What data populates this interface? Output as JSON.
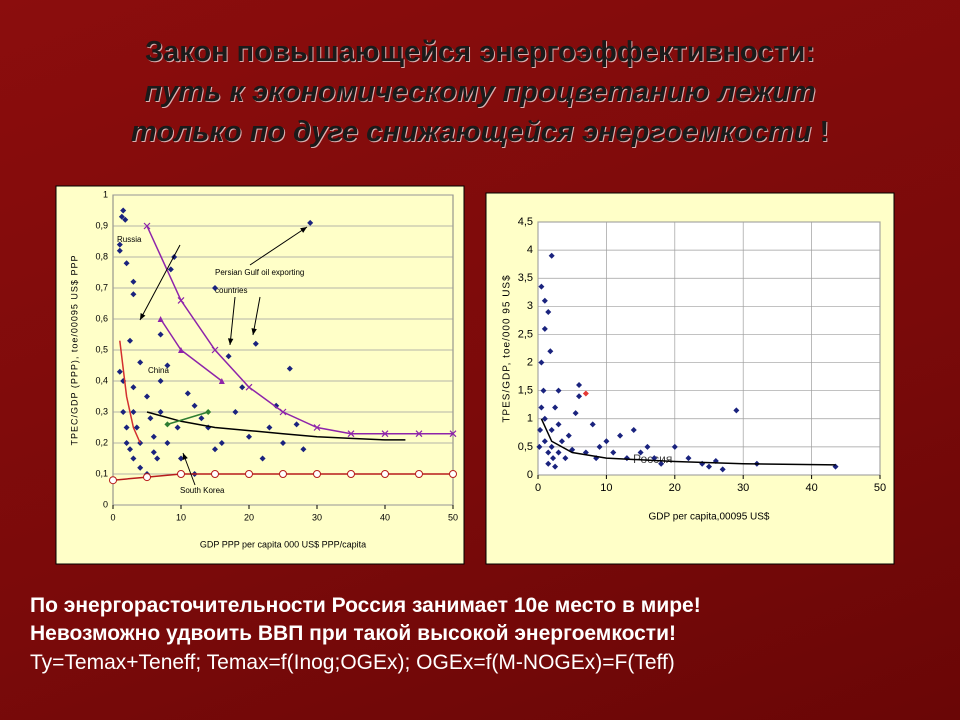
{
  "title": [
    "Закон повышающейся энергоэффективности:",
    "путь к экономическому процветанию лежит",
    "только по дуге снижающейся энергоемкости",
    "!"
  ],
  "footer": [
    "По энергорасточительности Россия занимает 10е место в мире!",
    "Невозможно удвоить ВВП при такой высокой энергоемкости!",
    "Ty=Temax+Teneff; Temax=f(Inog;OGEx); OGEx=f(M-NOGEx)=F(Teff)"
  ],
  "chart_data": [
    {
      "type": "scatter",
      "x_label": "GDP PPP per capita 000 US$ PPP/capita",
      "y_label": "TPEC/GDP (PPP), toe/00095 US$ PPP",
      "annotations": [
        "Russia",
        "Persian Gulf oil exporting",
        "countries",
        "China",
        "South Korea"
      ],
      "xlim": [
        0,
        50
      ],
      "ylim": [
        0,
        1
      ],
      "xticks": [
        0,
        10,
        20,
        30,
        40,
        50
      ],
      "yticks": [
        0,
        {
          "value": 0.1,
          "label": "0,1"
        },
        {
          "value": 0.2,
          "label": "0,2"
        },
        {
          "value": 0.3,
          "label": "0,3"
        },
        {
          "value": 0.4,
          "label": "0,4"
        },
        {
          "value": 0.5,
          "label": "0,5"
        },
        {
          "value": 0.6,
          "label": "0,6"
        },
        {
          "value": 0.7,
          "label": "0,7"
        },
        {
          "value": 0.8,
          "label": "0,8"
        },
        {
          "value": 0.9,
          "label": "0,9"
        },
        1
      ],
      "grid": true,
      "series": [
        {
          "color": "#1a237e",
          "marker": "diamond",
          "line": false,
          "x": [
            1,
            1,
            1.3,
            1.5,
            1.8,
            2,
            1,
            1.5,
            1.5,
            2,
            2,
            2.5,
            3,
            3,
            3.5,
            4,
            4,
            5,
            5,
            5.5,
            6,
            6.5,
            7,
            7,
            8,
            8,
            8.5,
            9,
            9.5,
            10,
            11,
            12,
            13,
            14,
            15,
            16,
            17,
            18,
            19,
            20,
            21,
            22,
            23,
            24,
            25,
            26,
            27,
            28,
            29,
            3,
            3,
            2.5,
            3,
            4,
            6,
            7,
            12,
            15
          ],
          "values": [
            0.82,
            0.84,
            0.93,
            0.95,
            0.92,
            0.78,
            0.43,
            0.4,
            0.3,
            0.25,
            0.2,
            0.18,
            0.3,
            0.15,
            0.25,
            0.2,
            0.12,
            0.1,
            0.35,
            0.28,
            0.22,
            0.15,
            0.4,
            0.3,
            0.2,
            0.45,
            0.76,
            0.8,
            0.25,
            0.15,
            0.36,
            0.32,
            0.28,
            0.25,
            0.7,
            0.2,
            0.48,
            0.3,
            0.38,
            0.22,
            0.52,
            0.15,
            0.25,
            0.32,
            0.2,
            0.44,
            0.26,
            0.18,
            0.91,
            0.68,
            0.72,
            0.53,
            0.38,
            0.46,
            0.17,
            0.55,
            0.1,
            0.18
          ]
        },
        {
          "color": "#8e24aa",
          "marker": "x",
          "line": true,
          "x": [
            5,
            10,
            15,
            20,
            25,
            30,
            35,
            40,
            45,
            50
          ],
          "values": [
            0.9,
            0.66,
            0.5,
            0.38,
            0.3,
            0.25,
            0.23,
            0.23,
            0.23,
            0.23
          ]
        },
        {
          "color": "#8e24aa",
          "marker": "triangle",
          "line": true,
          "x": [
            7,
            10,
            16
          ],
          "values": [
            0.6,
            0.5,
            0.4
          ]
        },
        {
          "color": "#000000",
          "marker": "none",
          "line": true,
          "x": [
            5,
            10,
            15,
            20,
            25,
            30,
            35,
            40,
            43
          ],
          "values": [
            0.3,
            0.27,
            0.25,
            0.24,
            0.23,
            0.22,
            0.215,
            0.21,
            0.21
          ]
        },
        {
          "color": "#b71c1c",
          "marker": "circle",
          "line": true,
          "x": [
            0,
            5,
            10,
            15,
            20,
            25,
            30,
            35,
            40,
            45,
            50
          ],
          "values": [
            0.08,
            0.09,
            0.1,
            0.1,
            0.1,
            0.1,
            0.1,
            0.1,
            0.1,
            0.1,
            0.1
          ]
        },
        {
          "color": "#d32f2f",
          "marker": "none",
          "line": true,
          "x": [
            1,
            2,
            3,
            4
          ],
          "values": [
            0.53,
            0.35,
            0.25,
            0.2
          ]
        },
        {
          "color": "#2e7d32",
          "marker": "diamond",
          "line": true,
          "x": [
            8,
            14
          ],
          "values": [
            0.26,
            0.3
          ]
        }
      ]
    },
    {
      "type": "scatter",
      "x_label": "GDP per capita,00095 US$",
      "y_label": "TPES/GDP, toe/000 95 US$",
      "annotations": [
        "Россия"
      ],
      "xlim": [
        0,
        50
      ],
      "ylim": [
        0,
        4.5
      ],
      "xticks": [
        0,
        10,
        20,
        30,
        40,
        50
      ],
      "yticks": [
        0,
        {
          "value": 0.5,
          "label": "0,5"
        },
        1,
        {
          "value": 1.5,
          "label": "1,5"
        },
        2,
        {
          "value": 2.5,
          "label": "2,5"
        },
        3,
        {
          "value": 3.5,
          "label": "3,5"
        },
        4,
        {
          "value": 4.5,
          "label": "4,5"
        }
      ],
      "grid": true,
      "series": [
        {
          "color": "#1a237e",
          "marker": "diamond",
          "line": false,
          "x": [
            0.5,
            1,
            1,
            1.5,
            2,
            1.8,
            0.5,
            0.8,
            0.5,
            1,
            1,
            1.5,
            2,
            2,
            2.5,
            3,
            3,
            3.5,
            4,
            4.5,
            5,
            5.5,
            6,
            6,
            7,
            8,
            8.5,
            9,
            10,
            11,
            12,
            13,
            14,
            15,
            16,
            17,
            18,
            20,
            22,
            24,
            25,
            26,
            27,
            29,
            32,
            43.5,
            0.2,
            0.3,
            1.5,
            2.5,
            3,
            2.2
          ],
          "values": [
            3.35,
            3.1,
            2.6,
            2.9,
            3.9,
            2.2,
            2.0,
            1.5,
            1.2,
            1.0,
            0.6,
            0.4,
            0.8,
            0.5,
            1.2,
            0.9,
            0.4,
            0.6,
            0.3,
            0.7,
            0.45,
            1.1,
            1.6,
            1.4,
            0.4,
            0.9,
            0.3,
            0.5,
            0.6,
            0.4,
            0.7,
            0.3,
            0.8,
            0.4,
            0.5,
            0.3,
            0.2,
            0.5,
            0.3,
            0.2,
            0.15,
            0.25,
            0.1,
            1.15,
            0.2,
            0.15,
            0.5,
            0.8,
            0.2,
            0.15,
            1.5,
            0.3
          ]
        },
        {
          "color": "#e53935",
          "marker": "diamond",
          "line": false,
          "x": [
            7
          ],
          "values": [
            1.45
          ]
        },
        {
          "color": "#000000",
          "marker": "none",
          "line": true,
          "x": [
            0.5,
            2,
            5,
            10,
            20,
            30,
            43.5
          ],
          "values": [
            1.0,
            0.6,
            0.4,
            0.3,
            0.24,
            0.2,
            0.18
          ]
        }
      ]
    }
  ]
}
